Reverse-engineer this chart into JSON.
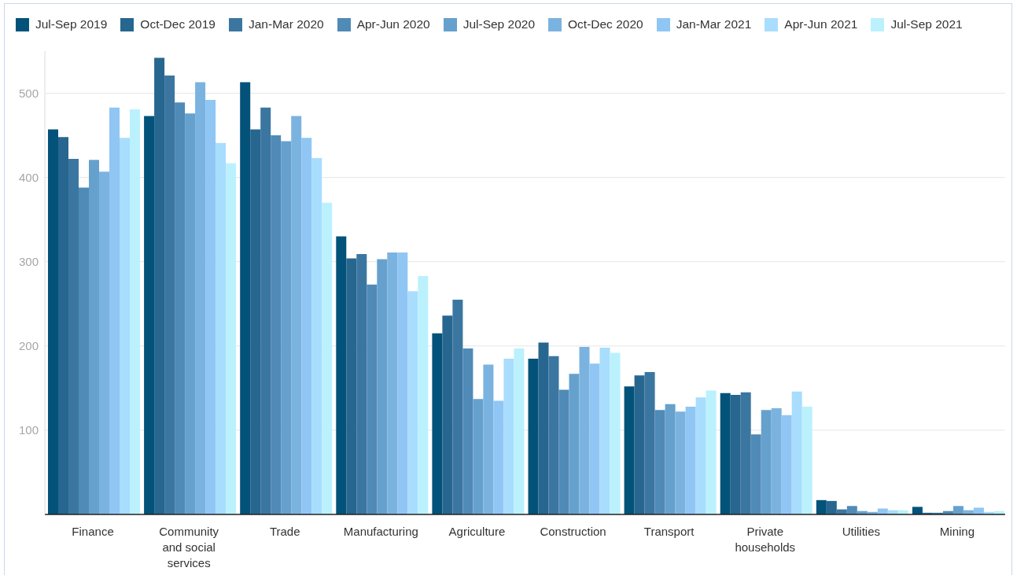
{
  "chart_data": {
    "type": "bar",
    "categories": [
      "Finance",
      "Community and social services",
      "Trade",
      "Manufacturing",
      "Agriculture",
      "Construction",
      "Transport",
      "Private households",
      "Utilities",
      "Mining"
    ],
    "series": [
      {
        "name": "Jul-Sep 2019",
        "color": "#03527a",
        "values": [
          457,
          473,
          513,
          330,
          215,
          185,
          152,
          144,
          17,
          9
        ]
      },
      {
        "name": "Oct-Dec 2019",
        "color": "#27668f",
        "values": [
          448,
          542,
          457,
          304,
          236,
          204,
          165,
          142,
          16,
          2
        ]
      },
      {
        "name": "Jan-Mar 2020",
        "color": "#3b76a1",
        "values": [
          422,
          521,
          483,
          309,
          255,
          188,
          169,
          145,
          6,
          2
        ]
      },
      {
        "name": "Apr-Jun 2020",
        "color": "#508ab7",
        "values": [
          388,
          489,
          450,
          273,
          197,
          148,
          124,
          95,
          10,
          4
        ]
      },
      {
        "name": "Jul-Sep 2020",
        "color": "#66a1cd",
        "values": [
          421,
          476,
          443,
          303,
          137,
          167,
          131,
          124,
          4,
          10
        ]
      },
      {
        "name": "Oct-Dec 2020",
        "color": "#7bb3e0",
        "values": [
          407,
          513,
          473,
          311,
          178,
          199,
          122,
          126,
          3,
          5
        ]
      },
      {
        "name": "Jan-Mar 2021",
        "color": "#90c6f3",
        "values": [
          483,
          492,
          447,
          311,
          135,
          179,
          128,
          118,
          7,
          8
        ]
      },
      {
        "name": "Apr-Jun 2021",
        "color": "#a8ddfd",
        "values": [
          447,
          441,
          423,
          265,
          185,
          198,
          139,
          146,
          5,
          3
        ]
      },
      {
        "name": "Jul-Sep 2021",
        "color": "#bbf1fd",
        "values": [
          481,
          417,
          370,
          283,
          197,
          192,
          147,
          128,
          5,
          4
        ]
      }
    ],
    "ylim": [
      0,
      550
    ],
    "yticks": [
      100,
      200,
      300,
      400,
      500
    ],
    "grid": "y",
    "legend": "top left"
  }
}
